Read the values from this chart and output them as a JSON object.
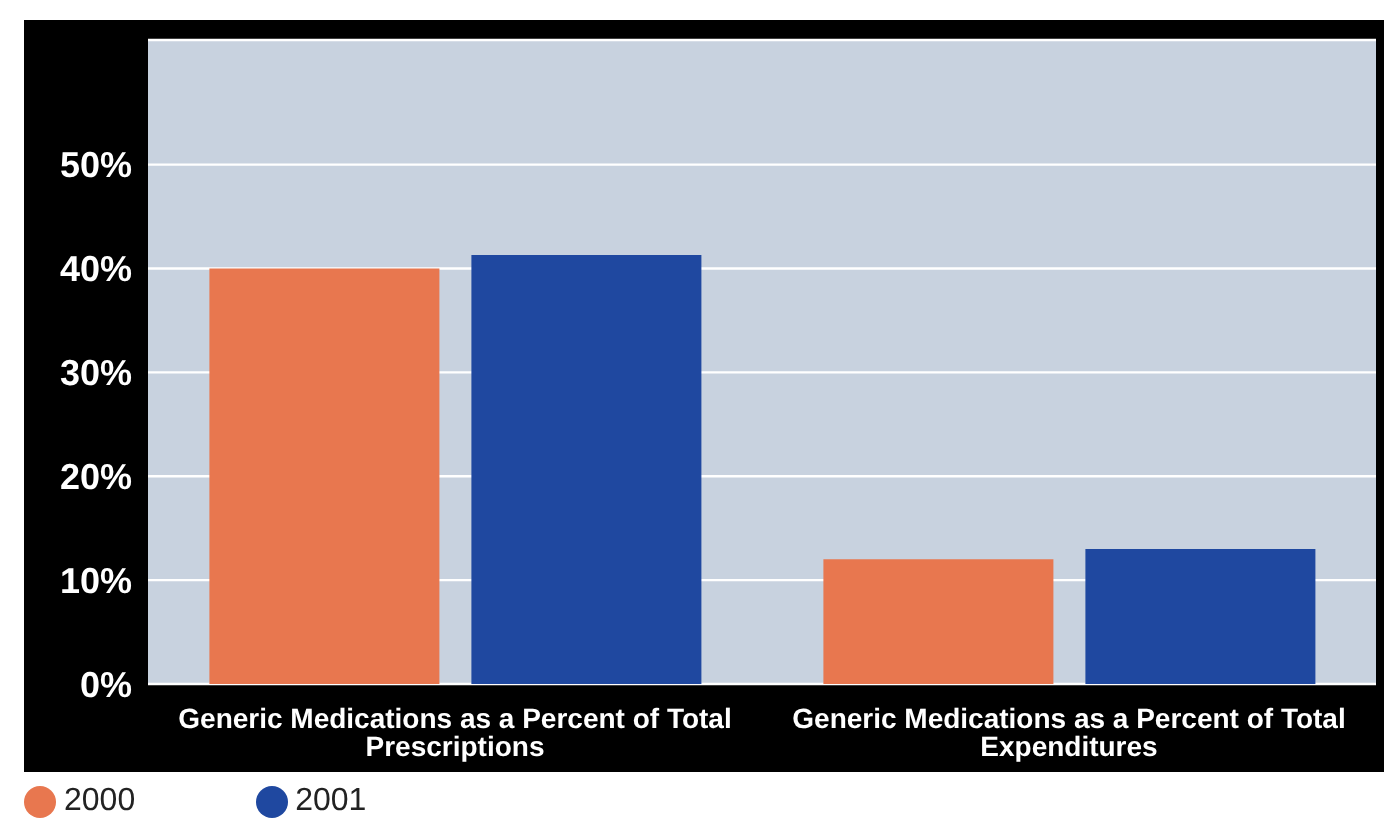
{
  "chart_data": {
    "type": "bar",
    "categories": [
      "Generic Medications as a Percent of Total Prescriptions",
      "Generic Medications as a Percent of Total Expenditures"
    ],
    "series": [
      {
        "name": "2000",
        "color": "#e8774f",
        "values": [
          40,
          12
        ]
      },
      {
        "name": "2001",
        "color": "#1f48a0",
        "values": [
          41.3,
          13
        ]
      }
    ],
    "ylim": [
      0,
      62
    ],
    "yticks": [
      {
        "value": 0,
        "label": "0%"
      },
      {
        "value": 10,
        "label": "10%"
      },
      {
        "value": 20,
        "label": "20%"
      },
      {
        "value": 30,
        "label": "30%"
      },
      {
        "value": 40,
        "label": "40%"
      },
      {
        "value": 50,
        "label": "50%"
      }
    ],
    "grid": "y",
    "legend": "bottom left"
  }
}
